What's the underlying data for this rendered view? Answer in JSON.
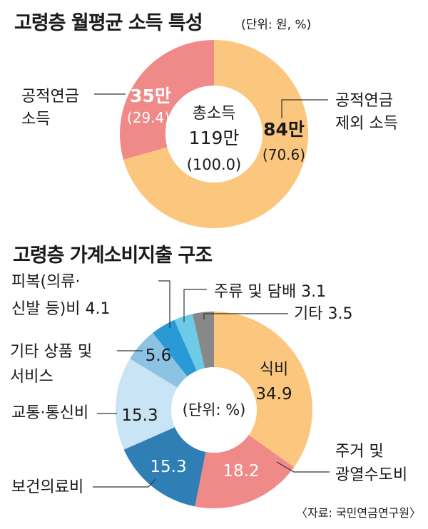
{
  "header": {
    "title1": "고령층 월평균 소득 특성",
    "unit1": "(단위: 원, %)",
    "title2": "고령층 가계소비지출 구조",
    "source": "〈자료: 국민연금연구원〉"
  },
  "chart_data": [
    {
      "type": "pie",
      "title": "고령층 월평균 소득 특성",
      "unit": "(단위: 원, %)",
      "center_label": [
        "총소득",
        "119만",
        "(100.0)"
      ],
      "slices": [
        {
          "name": "공적연금 소득",
          "amount": "35만",
          "percent": 29.4,
          "color": "#f08a88"
        },
        {
          "name": "공적연금 제외 소득",
          "amount": "84만",
          "percent": 70.6,
          "color": "#fbc77f"
        }
      ]
    },
    {
      "type": "pie",
      "title": "고령층 가계소비지출 구조",
      "center_label": "(단위: %)",
      "slices": [
        {
          "name": "식비",
          "value": 34.9,
          "color": "#fbc77f"
        },
        {
          "name": "주거 및 광열수도비",
          "value": 18.2,
          "color": "#f08a88"
        },
        {
          "name": "보건의료비",
          "value": 15.3,
          "color": "#2f7fb5"
        },
        {
          "name": "교통·통신비",
          "value": 15.3,
          "color": "#c9e4f4"
        },
        {
          "name": "기타 상품 및 서비스",
          "value": 5.6,
          "color": "#8cc2e2"
        },
        {
          "name": "피복(의류·신발 등)비",
          "value": 4.1,
          "color": "#2a9ad6"
        },
        {
          "name": "주류 및 담배",
          "value": 3.1,
          "color": "#6ccbe6"
        },
        {
          "name": "기타",
          "value": 3.5,
          "color": "#888888"
        }
      ]
    }
  ]
}
